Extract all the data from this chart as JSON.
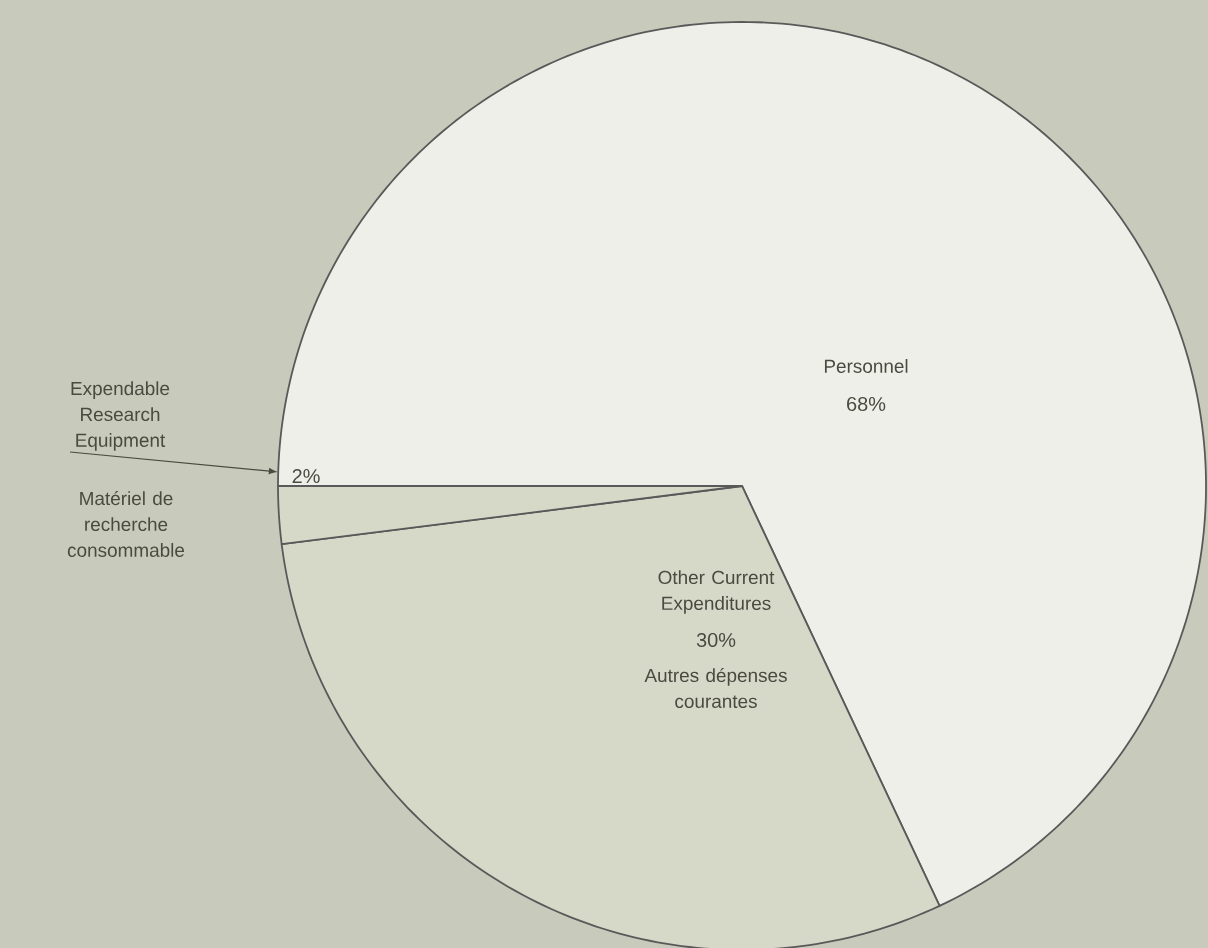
{
  "chart_data": {
    "type": "pie",
    "categories": [
      "Personnel",
      "Other Current Expenditures",
      "Expendable Research Equipment"
    ],
    "values": [
      68,
      30,
      2
    ],
    "value_labels": [
      "68%",
      "30%",
      "2%"
    ],
    "colors": [
      "#eeefe8",
      "#d6d8c8",
      "#d6d8c8"
    ],
    "annotations": [
      "Autres dépenses courantes",
      "Matériel de recherche consommable"
    ]
  }
}
